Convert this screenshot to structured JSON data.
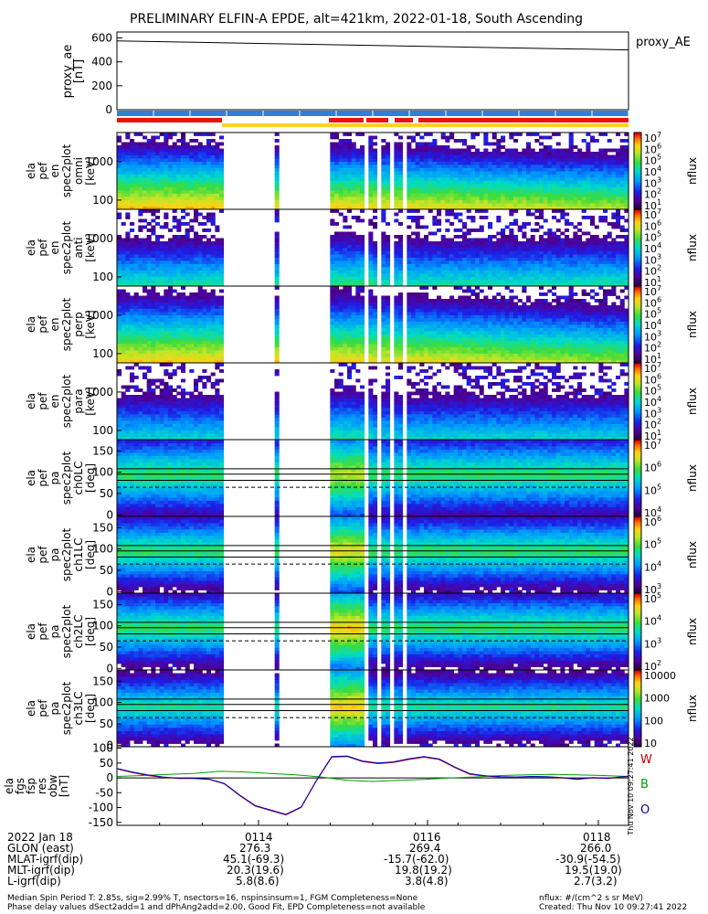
{
  "title": "PRELIMINARY ELFIN-A EPDE, alt=421km, 2022-01-18, South Ascending",
  "colors": {
    "w": "#c00000",
    "b": "#00a000",
    "o": "#0000c0",
    "ae_line": "#000000",
    "bar_blue": "#2f7fd8",
    "bar_red": "#e8140c",
    "bar_yellow": "#ffd21e"
  },
  "chart_data": [
    {
      "type": "line",
      "panel": "proxy_ae",
      "ylabel": "proxy_ae\n[nT]",
      "ylim": [
        0,
        650
      ],
      "yticks": [
        "0",
        "200",
        "400",
        "600"
      ],
      "legend": [
        "proxy_AE"
      ],
      "series": [
        {
          "name": "proxy_AE",
          "x": [
            0,
            1
          ],
          "values": [
            575,
            500
          ]
        }
      ]
    },
    {
      "type": "heatmap",
      "panel": "spec2plot_omni",
      "ylabel": "ela\npef\nen\nspec2plot\nomni\n[keV]",
      "yticks": [
        "100",
        "1000"
      ],
      "yscale": "log",
      "colorbar": {
        "label": "nflux",
        "ticks": [
          "10^7",
          "10^6",
          "10^5",
          "10^4",
          "10^3",
          "10^2",
          "10^1"
        ]
      }
    },
    {
      "type": "heatmap",
      "panel": "spec2plot_anti",
      "ylabel": "ela\npef\nen\nspec2plot\nanti\n[keV]",
      "yticks": [
        "100",
        "1000"
      ],
      "yscale": "log",
      "colorbar": {
        "label": "nflux",
        "ticks": [
          "10^7",
          "10^6",
          "10^5",
          "10^4",
          "10^3",
          "10^2",
          "10^1"
        ]
      }
    },
    {
      "type": "heatmap",
      "panel": "spec2plot_perp",
      "ylabel": "ela\npef\nen\nspec2plot\nperp\n[keV]",
      "yticks": [
        "100",
        "1000"
      ],
      "yscale": "log",
      "colorbar": {
        "label": "nflux",
        "ticks": [
          "10^7",
          "10^6",
          "10^5",
          "10^4",
          "10^3",
          "10^2",
          "10^1"
        ]
      }
    },
    {
      "type": "heatmap",
      "panel": "spec2plot_para",
      "ylabel": "ela\npef\nen\nspec2plot\npara\n[keV]",
      "yticks": [
        "100",
        "1000"
      ],
      "yscale": "log",
      "colorbar": {
        "label": "nflux",
        "ticks": [
          "10^7",
          "10^6",
          "10^5",
          "10^4",
          "10^3",
          "10^2",
          "10^1"
        ]
      }
    },
    {
      "type": "heatmap",
      "panel": "spec2plot_ch0LC",
      "ylabel": "ela\npef\npa\nspec2plot\nch0LC\n[deg]",
      "yticks": [
        "0",
        "50",
        "100",
        "150"
      ],
      "colorbar": {
        "label": "nflux",
        "ticks": [
          "10^7",
          "10^6",
          "10^5",
          "10^4"
        ]
      }
    },
    {
      "type": "heatmap",
      "panel": "spec2plot_ch1LC",
      "ylabel": "ela\npef\npa\nspec2plot\nch1LC\n[deg]",
      "yticks": [
        "0",
        "50",
        "100",
        "150"
      ],
      "colorbar": {
        "label": "nflux",
        "ticks": [
          "10^6",
          "10^5",
          "10^4",
          "10^3"
        ]
      }
    },
    {
      "type": "heatmap",
      "panel": "spec2plot_ch2LC",
      "ylabel": "ela\npef\npa\nspec2plot\nch2LC\n[deg]",
      "yticks": [
        "0",
        "50",
        "100",
        "150"
      ],
      "colorbar": {
        "label": "nflux",
        "ticks": [
          "10^5",
          "10^4",
          "10^3",
          "10^2"
        ]
      }
    },
    {
      "type": "heatmap",
      "panel": "spec2plot_ch3LC",
      "ylabel": "ela\npef\npa\nspec2plot\nch3LC\n[deg]",
      "yticks": [
        "0",
        "50",
        "100",
        "150"
      ],
      "colorbar": {
        "label": "nflux",
        "ticks": [
          "10000",
          "1000",
          "100",
          "10"
        ]
      }
    },
    {
      "type": "line",
      "panel": "fgs_res_obw",
      "ylabel": "ela\nfgs\nfsp\nres\nobw\n[nT]",
      "ylim": [
        -160,
        105
      ],
      "yticks": [
        "100",
        "50",
        "0",
        "-50",
        "-100",
        "-150"
      ],
      "legend": [
        "W",
        "B",
        "O"
      ],
      "series": [
        {
          "name": "W",
          "x": [
            0,
            0.03,
            0.06,
            0.09,
            0.12,
            0.15,
            0.18,
            0.21,
            0.24,
            0.27,
            0.3,
            0.33,
            0.36,
            0.39,
            0.42,
            0.45,
            0.48,
            0.51,
            0.54,
            0.57,
            0.6,
            0.63,
            0.66,
            0.69,
            0.72,
            0.75,
            0.78,
            0.81,
            0.84,
            0.87,
            0.9,
            0.93,
            0.96,
            1.0
          ],
          "values": [
            30,
            18,
            8,
            2,
            -2,
            -2,
            -5,
            -20,
            -60,
            -95,
            -110,
            -125,
            -100,
            -10,
            70,
            72,
            55,
            48,
            52,
            62,
            70,
            62,
            35,
            12,
            6,
            3,
            2,
            4,
            3,
            0,
            -5,
            0,
            -2,
            5
          ]
        },
        {
          "name": "B",
          "x": [
            0,
            0.05,
            0.1,
            0.15,
            0.2,
            0.25,
            0.3,
            0.35,
            0.4,
            0.45,
            0.5,
            0.55,
            0.6,
            0.65,
            0.7,
            0.75,
            0.8,
            0.85,
            0.9,
            0.95,
            1.0
          ],
          "values": [
            5,
            8,
            12,
            15,
            22,
            20,
            15,
            10,
            3,
            -8,
            -12,
            -8,
            -5,
            0,
            3,
            8,
            10,
            12,
            10,
            8,
            5
          ]
        },
        {
          "name": "O",
          "x": [
            0,
            0.03,
            0.06,
            0.09,
            0.12,
            0.15,
            0.18,
            0.21,
            0.24,
            0.27,
            0.3,
            0.33,
            0.36,
            0.39,
            0.42,
            0.45,
            0.48,
            0.51,
            0.54,
            0.57,
            0.6,
            0.63,
            0.66,
            0.69,
            0.72,
            0.75,
            0.78,
            0.81,
            0.84,
            0.87,
            0.9,
            0.93,
            0.96,
            1.0
          ],
          "values": [
            32,
            20,
            10,
            3,
            -1,
            -1,
            -4,
            -19,
            -58,
            -93,
            -108,
            -123,
            -98,
            -8,
            72,
            74,
            57,
            50,
            54,
            64,
            72,
            64,
            37,
            14,
            7,
            4,
            3,
            5,
            4,
            1,
            -4,
            1,
            -1,
            6
          ]
        }
      ]
    }
  ],
  "side_labels": {
    "proxy_ae": "proxy_AE",
    "nflux": "nflux",
    "w": "W",
    "b": "B",
    "o": "O"
  },
  "xaxis": {
    "ticks": [
      {
        "label": "0114"
      },
      {
        "label": "0116"
      },
      {
        "label": "0118"
      }
    ],
    "row_labels": [
      "2022 Jan 18",
      "GLON (east)",
      "MLAT-igrf(dip)",
      "MLT-igrf(dip)",
      "L-igrf(dip)"
    ],
    "col1": [
      "",
      "276.3",
      "45.1(-69.3)",
      "20.3(19.6)",
      "5.8(8.6)"
    ],
    "col2": [
      "",
      "269.4",
      "-15.7(-62.0)",
      "19.8(19.2)",
      "3.8(4.8)"
    ],
    "col3": [
      "",
      "266.0",
      "-30.9(-54.5)",
      "19.5(19.0)",
      "2.7(3.2)"
    ]
  },
  "footer": {
    "line1_left": "Median Spin Period T: 2.85s, sig=2.99% T, nsectors=16, nspinsinsum=1, FGM Completeness=None",
    "line2_left": "Phase delay values dSect2add=1 and dPhAng2add=2.00, Good Fit, EPD Completeness=not available",
    "line1_right": "nflux: #/(cm^2 s sr MeV)",
    "line2_right": "Created: Thu Nov 10 09:27:41 2022",
    "stamp": "Thu Nov 10 09:27:41 2022"
  }
}
